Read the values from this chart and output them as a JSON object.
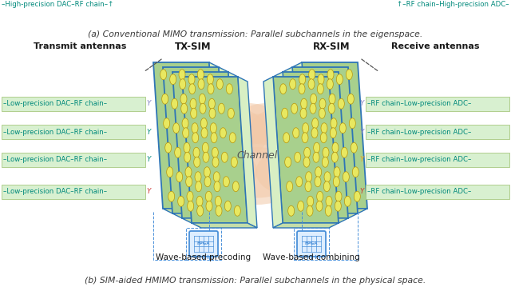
{
  "bg_color": "#ffffff",
  "caption_a": "(a) Conventional MIMO transmission: Parallel subchannels in the eigenspace.",
  "caption_b": "(b) SIM-aided HMIMO transmission: Parallel subchannels in the physical space.",
  "caption_color": "#3a3a3a",
  "caption_fontsize": 7.8,
  "label_tx_sim": "TX-SIM",
  "label_rx_sim": "RX-SIM",
  "label_tx_ant": "Transmit antennas",
  "label_rx_ant": "Receive antennas",
  "label_channel": "Channel",
  "label_precoding": "Wave-based precoding",
  "label_combining": "Wave-based combining",
  "sim_face_color": "#a8d08d",
  "sim_edge_color": "#2e75b6",
  "sim_top_color": "#c5dea8",
  "sim_side_color": "#d8efc4",
  "oval_fill": "#e8e860",
  "oval_edge": "#b8960a",
  "blue_edge": "#2e75b6",
  "teal_color": "#00897b",
  "cloud_color": "#f2c9a8",
  "cloud_alpha": 0.55,
  "label_bg": "#d8f0d0",
  "label_border": "#a8c880",
  "chip_color": "#4a90d9",
  "chip_bg": "#deeeff",
  "top_left_text": "–High-precision DAC–RF chain–↑",
  "top_right_text": "↑–RF chain–High-precision ADC–",
  "lp_left": "–Low-precision DAC–RF chain–",
  "lp_right": "–RF chain–Low-precision ADC–",
  "n_layers": 4,
  "n_rows": 6,
  "n_cols": 3
}
